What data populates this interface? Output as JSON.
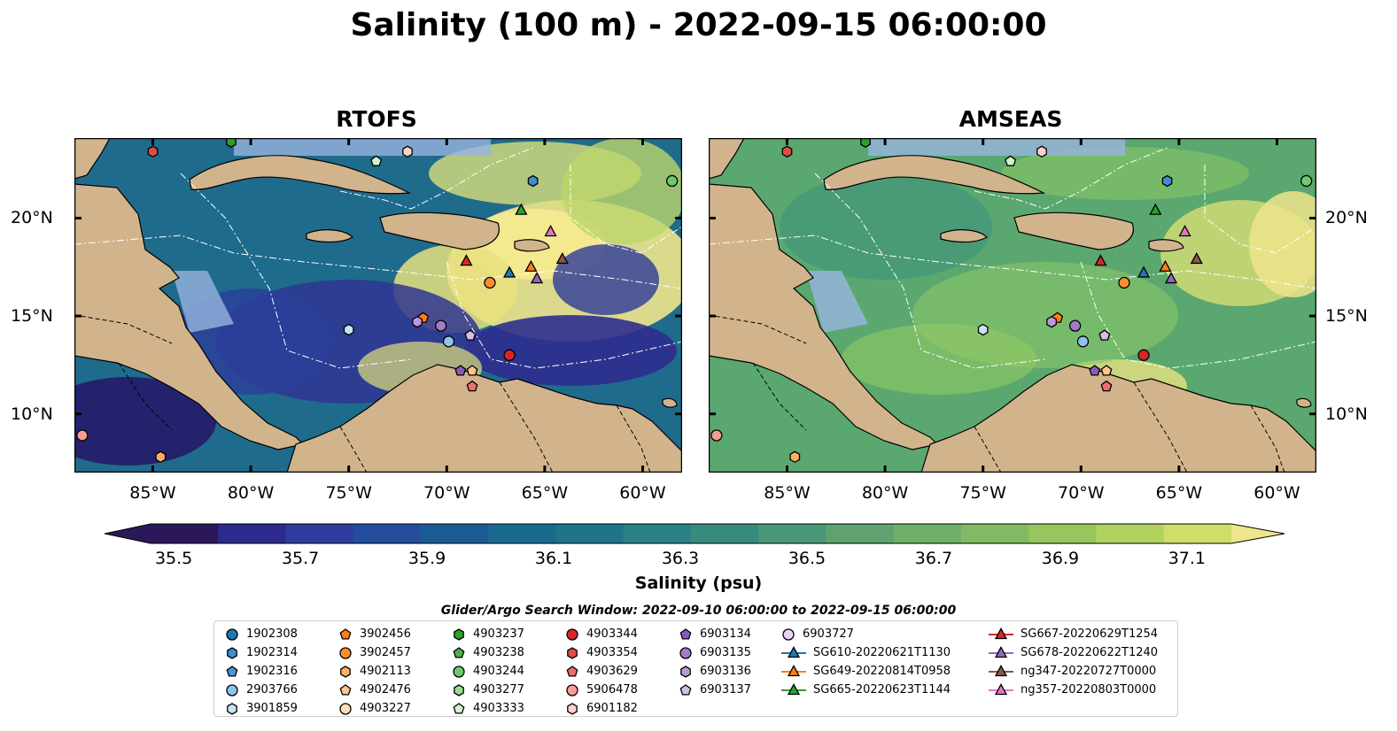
{
  "title": "Salinity (100 m) - 2022-09-15 06:00:00",
  "chart_data": [
    {
      "type": "heatmap",
      "title": "RTOFS",
      "lon_range": [
        -89,
        -58
      ],
      "lat_range": [
        7,
        24
      ],
      "xticks": [
        -85,
        -80,
        -75,
        -70,
        -65,
        -60
      ],
      "yticks": [
        10,
        15,
        20
      ],
      "xtick_labels": [
        "85°W",
        "80°W",
        "75°W",
        "70°W",
        "65°W",
        "60°W"
      ],
      "ytick_labels": [
        "10°N",
        "15°N",
        "20°N"
      ],
      "field": "salinity",
      "units": "psu",
      "depth": "100 m"
    },
    {
      "type": "heatmap",
      "title": "AMSEAS",
      "lon_range": [
        -89,
        -58
      ],
      "lat_range": [
        7,
        24
      ],
      "xticks": [
        -85,
        -80,
        -75,
        -70,
        -65,
        -60
      ],
      "yticks": [
        10,
        15,
        20
      ],
      "xtick_labels": [
        "85°W",
        "80°W",
        "75°W",
        "70°W",
        "65°W",
        "60°W"
      ],
      "ytick_labels": [
        "10°N",
        "15°N",
        "20°N"
      ],
      "field": "salinity",
      "units": "psu",
      "depth": "100 m"
    }
  ],
  "colorbar": {
    "label": "Salinity (psu)",
    "vmin": 35.5,
    "vmax": 37.1,
    "step": 0.1,
    "ticks": [
      35.5,
      35.7,
      35.9,
      36.1,
      36.3,
      36.5,
      36.7,
      36.9,
      37.1
    ],
    "tick_labels": [
      "35.5",
      "35.7",
      "35.9",
      "36.1",
      "36.3",
      "36.5",
      "36.7",
      "36.9",
      "37.1"
    ],
    "colors": [
      "#2a1858",
      "#2c2a8a",
      "#2d3c9e",
      "#244d9e",
      "#1b5c97",
      "#19698f",
      "#1f7489",
      "#2a8084",
      "#378c7e",
      "#4a9777",
      "#5ea36f",
      "#6faf69",
      "#80bb63",
      "#96c65d",
      "#b2d25f",
      "#d0dd6b",
      "#ede68a"
    ]
  },
  "legend": {
    "title": "Glider/Argo Search Window: 2022-09-10 06:00:00 to 2022-09-15 06:00:00",
    "columns": [
      [
        {
          "label": "1902308",
          "marker": "circle",
          "color": "#1f77b4"
        },
        {
          "label": "1902314",
          "marker": "hexagon",
          "color": "#3a8fd0"
        },
        {
          "label": "1902316",
          "marker": "pentagon",
          "color": "#4a95d6"
        },
        {
          "label": "2903766",
          "marker": "circle",
          "color": "#8ec3ea"
        },
        {
          "label": "3901859",
          "marker": "hexagon",
          "color": "#c7e4f7"
        }
      ],
      [
        {
          "label": "3902456",
          "marker": "pentagon",
          "color": "#ff7f0e"
        },
        {
          "label": "3902457",
          "marker": "circle",
          "color": "#ff8f2e"
        },
        {
          "label": "4902113",
          "marker": "hexagon",
          "color": "#ffb066"
        },
        {
          "label": "4902476",
          "marker": "pentagon",
          "color": "#ffc58f"
        },
        {
          "label": "4903227",
          "marker": "circle",
          "color": "#ffe0bd"
        }
      ],
      [
        {
          "label": "4903237",
          "marker": "hexagon",
          "color": "#2ca02c"
        },
        {
          "label": "4903238",
          "marker": "pentagon",
          "color": "#49b349"
        },
        {
          "label": "4903244",
          "marker": "circle",
          "color": "#6dc96d"
        },
        {
          "label": "4903277",
          "marker": "hexagon",
          "color": "#98dc91"
        },
        {
          "label": "4903333",
          "marker": "pentagon",
          "color": "#d3f2cc"
        }
      ],
      [
        {
          "label": "4903344",
          "marker": "circle",
          "color": "#d62728"
        },
        {
          "label": "4903354",
          "marker": "hexagon",
          "color": "#e24a4a"
        },
        {
          "label": "4903629",
          "marker": "pentagon",
          "color": "#ec6f6f"
        },
        {
          "label": "5906478",
          "marker": "circle",
          "color": "#f59c96"
        },
        {
          "label": "6901182",
          "marker": "hexagon",
          "color": "#fbd1cd"
        }
      ],
      [
        {
          "label": "6903134",
          "marker": "pentagon",
          "color": "#8b58bd"
        },
        {
          "label": "6903135",
          "marker": "circle",
          "color": "#a379cc"
        },
        {
          "label": "6903136",
          "marker": "hexagon",
          "color": "#ba9ada"
        },
        {
          "label": "6903137",
          "marker": "pentagon",
          "color": "#d4bdec"
        }
      ],
      [
        {
          "label": "6903727",
          "marker": "circle",
          "color": "#e7d4f7"
        },
        {
          "label": "SG610-20220621T1130",
          "marker": "triangle-line",
          "color": "#1f77b4"
        },
        {
          "label": "SG649-20220814T0958",
          "marker": "triangle-line",
          "color": "#ff7f0e"
        },
        {
          "label": "SG665-20220623T1144",
          "marker": "triangle-line",
          "color": "#2ca02c"
        }
      ],
      [
        {
          "label": "SG667-20220629T1254",
          "marker": "triangle-line",
          "color": "#d62728"
        },
        {
          "label": "SG678-20220622T1240",
          "marker": "triangle-line",
          "color": "#9467bd"
        },
        {
          "label": "ng347-20220727T0000",
          "marker": "triangle-line",
          "color": "#8c564b"
        },
        {
          "label": "ng357-20220803T0000",
          "marker": "triangle-line",
          "color": "#e377c2"
        }
      ]
    ]
  },
  "observations": [
    {
      "id": "4903354",
      "lon": -85.0,
      "lat": 23.4
    },
    {
      "id": "6901182",
      "lon": -72.0,
      "lat": 23.4
    },
    {
      "id": "4903333",
      "lon": -73.6,
      "lat": 22.9
    },
    {
      "id": "4903237",
      "lon": -81.0,
      "lat": 23.9
    },
    {
      "id": "1902314",
      "lon": -65.6,
      "lat": 21.9
    },
    {
      "id": "4903244",
      "lon": -58.5,
      "lat": 21.9
    },
    {
      "id": "SG665-20220623T1144",
      "lon": -66.2,
      "lat": 20.4
    },
    {
      "id": "ng357-20220803T0000",
      "lon": -64.7,
      "lat": 19.3
    },
    {
      "id": "SG667-20220629T1254",
      "lon": -69.0,
      "lat": 17.8
    },
    {
      "id": "SG610-20220621T1130",
      "lon": -66.8,
      "lat": 17.2
    },
    {
      "id": "SG649-20220814T0958",
      "lon": -65.7,
      "lat": 17.5
    },
    {
      "id": "ng347-20220727T0000",
      "lon": -64.1,
      "lat": 17.9
    },
    {
      "id": "SG678-20220622T1240",
      "lon": -65.4,
      "lat": 16.9
    },
    {
      "id": "3902457",
      "lon": -67.8,
      "lat": 16.7
    },
    {
      "id": "3902456",
      "lon": -71.2,
      "lat": 14.9
    },
    {
      "id": "6903136",
      "lon": -71.5,
      "lat": 14.7
    },
    {
      "id": "6903135",
      "lon": -70.3,
      "lat": 14.5
    },
    {
      "id": "6903137",
      "lon": -68.8,
      "lat": 14.0
    },
    {
      "id": "3901859",
      "lon": -75.0,
      "lat": 14.3
    },
    {
      "id": "2903766",
      "lon": -69.9,
      "lat": 13.7
    },
    {
      "id": "4903344",
      "lon": -66.8,
      "lat": 13.0
    },
    {
      "id": "6903134",
      "lon": -69.3,
      "lat": 12.2
    },
    {
      "id": "4902476",
      "lon": -68.7,
      "lat": 12.2
    },
    {
      "id": "4903629",
      "lon": -68.7,
      "lat": 11.4
    },
    {
      "id": "5906478",
      "lon": -88.6,
      "lat": 8.9
    },
    {
      "id": "4902113",
      "lon": -84.6,
      "lat": 7.8
    }
  ]
}
